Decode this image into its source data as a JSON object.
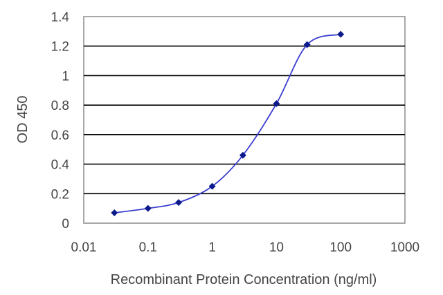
{
  "chart_data": {
    "type": "line",
    "title": "",
    "xlabel": "Recombinant Protein Concentration (ng/ml)",
    "ylabel": "OD 450",
    "x_scale": "log",
    "xlim": [
      0.01,
      1000
    ],
    "ylim": [
      0,
      1.4
    ],
    "x_ticks": [
      0.01,
      0.1,
      1,
      10,
      100,
      1000
    ],
    "x_tick_labels": [
      "0.01",
      "0.1",
      "1",
      "10",
      "100",
      "1000"
    ],
    "y_ticks": [
      0,
      0.2,
      0.4,
      0.6,
      0.8,
      1.0,
      1.2,
      1.4
    ],
    "y_tick_labels": [
      "0",
      "0.2",
      "0.4",
      "0.6",
      "0.8",
      "1",
      "1.2",
      "1.4"
    ],
    "grid": "horizontal",
    "legend": "none",
    "series": [
      {
        "x": [
          0.03,
          0.1,
          0.3,
          1,
          3,
          10,
          30,
          100
        ],
        "y": [
          0.07,
          0.1,
          0.14,
          0.25,
          0.46,
          0.81,
          1.21,
          1.28
        ],
        "marker": "diamond",
        "color": "#0d1a8c",
        "line_color": "#3a3ed0"
      }
    ],
    "colors": {
      "grid": "#000000",
      "plot_border": "#8a8a8a",
      "marker": "#0d1a8c",
      "line": "#3a3ed0",
      "text": "#444444"
    }
  }
}
